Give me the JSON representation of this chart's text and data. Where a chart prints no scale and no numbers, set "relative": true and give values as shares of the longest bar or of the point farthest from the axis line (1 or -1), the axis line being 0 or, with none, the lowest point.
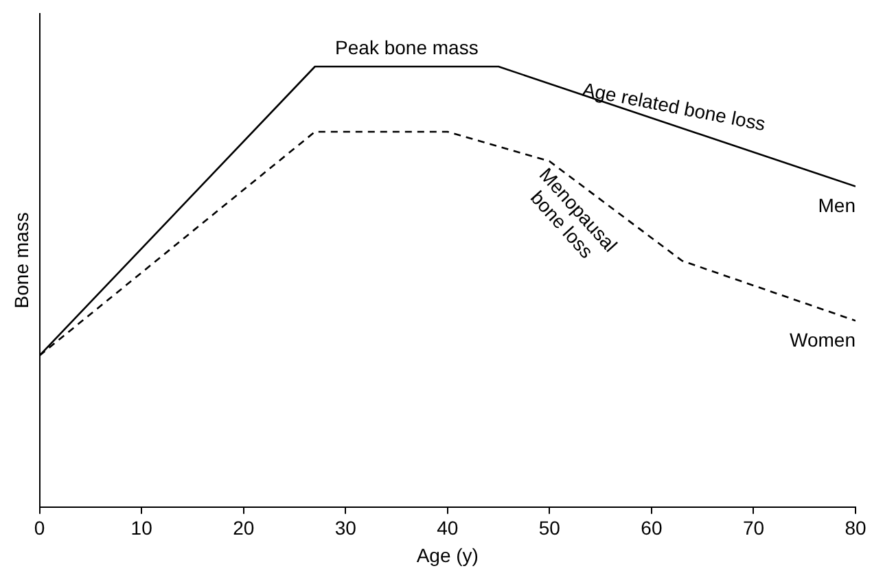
{
  "chart_data": {
    "type": "line",
    "relative": true,
    "xlabel": "Age (y)",
    "ylabel": "Bone mass",
    "xlim": [
      0,
      80
    ],
    "xticks": [
      0,
      10,
      20,
      30,
      40,
      50,
      60,
      70,
      80
    ],
    "grid": false,
    "legend": false,
    "marker": "none",
    "series": [
      {
        "name": "Men",
        "color": "#000000",
        "line_style": "solid",
        "x": [
          0,
          27,
          45,
          80
        ],
        "values": [
          0.344,
          1,
          1,
          0.728
        ]
      },
      {
        "name": "Women",
        "color": "#000000",
        "line_style": "dashed",
        "x": [
          0,
          27,
          40,
          50,
          63,
          80
        ],
        "values": [
          0.344,
          0.852,
          0.852,
          0.785,
          0.559,
          0.423
        ]
      }
    ],
    "annotations": [
      {
        "text": "Peak bone mass",
        "x": 36,
        "y": 1
      },
      {
        "text": "Age related bone loss",
        "x": 62,
        "y": 0.86
      },
      {
        "text": "Menopausal bone loss",
        "x": 50,
        "y": 0.785
      }
    ]
  }
}
